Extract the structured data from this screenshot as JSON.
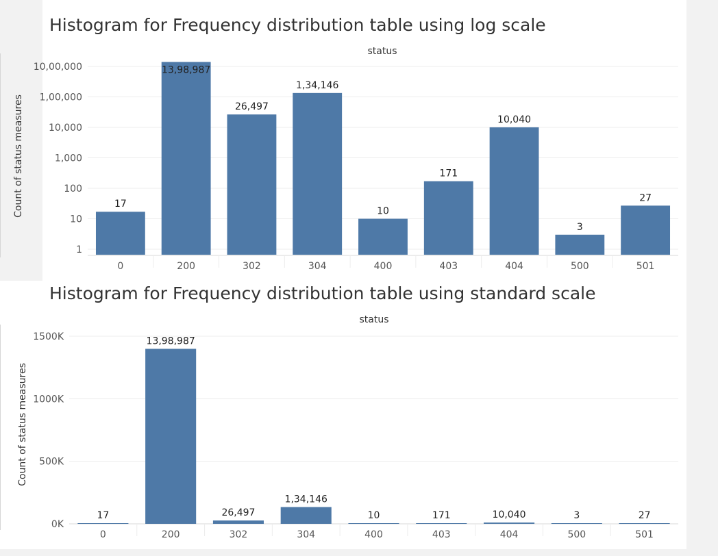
{
  "colors": {
    "bar": "#4e79a7"
  },
  "chart_data": [
    {
      "type": "bar",
      "title": "Histogram for Frequency distribution table using log scale",
      "xlabel": "status",
      "ylabel": "Count of status measures",
      "yscale": "log",
      "grid": true,
      "categories": [
        "0",
        "200",
        "302",
        "304",
        "400",
        "403",
        "404",
        "500",
        "501"
      ],
      "values": [
        17,
        1398987,
        26497,
        134146,
        10,
        171,
        10040,
        3,
        27
      ],
      "value_labels": [
        "17",
        "13,98,987",
        "26,497",
        "1,34,146",
        "10",
        "171",
        "10,040",
        "3",
        "27"
      ],
      "yticks": [
        1,
        10,
        100,
        1000,
        10000,
        100000,
        1000000
      ],
      "ytick_labels": [
        "1",
        "10",
        "100",
        "1,000",
        "10,000",
        "1,00,000",
        "10,00,000"
      ]
    },
    {
      "type": "bar",
      "title": "Histogram for Frequency distribution table using standard scale",
      "xlabel": "status",
      "ylabel": "Count of status measures",
      "yscale": "linear",
      "grid": true,
      "categories": [
        "0",
        "200",
        "302",
        "304",
        "400",
        "403",
        "404",
        "500",
        "501"
      ],
      "values": [
        17,
        1398987,
        26497,
        134146,
        10,
        171,
        10040,
        3,
        27
      ],
      "value_labels": [
        "17",
        "13,98,987",
        "26,497",
        "1,34,146",
        "10",
        "171",
        "10,040",
        "3",
        "27"
      ],
      "ylim": [
        0,
        1500000
      ],
      "yticks": [
        0,
        500000,
        1000000,
        1500000
      ],
      "ytick_labels": [
        "0K",
        "500K",
        "1000K",
        "1500K"
      ]
    }
  ]
}
